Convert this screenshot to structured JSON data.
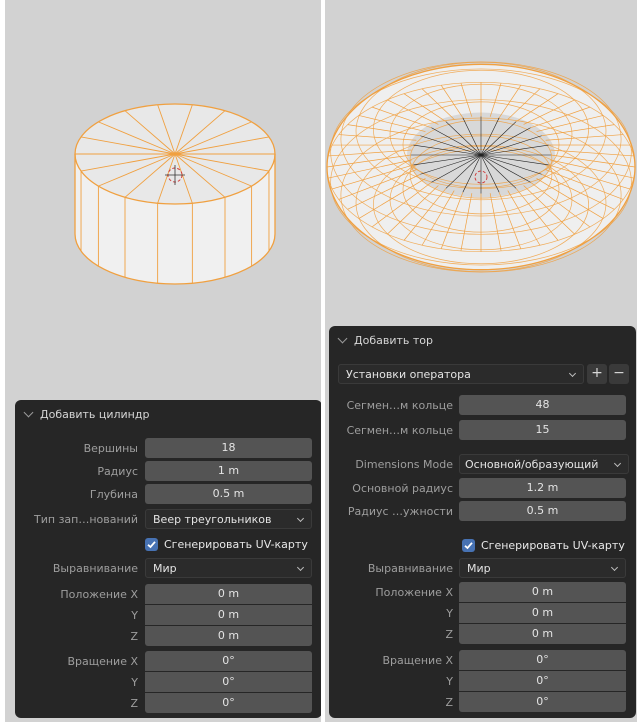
{
  "left": {
    "title": "Добавить цилиндр",
    "vertices": {
      "label": "Вершины",
      "value": "18"
    },
    "radius": {
      "label": "Радиус",
      "value": "1 m"
    },
    "depth": {
      "label": "Глубина",
      "value": "0.5 m"
    },
    "cap_fill": {
      "label": "Тип зап…нований",
      "value": "Веер треугольников"
    },
    "uv_checkbox": {
      "label": "Сгенерировать UV-карту",
      "checked": true
    },
    "align": {
      "label": "Выравнивание",
      "value": "Мир"
    },
    "location": {
      "label_x": "Положение X",
      "label_y": "Y",
      "label_z": "Z",
      "x": "0 m",
      "y": "0 m",
      "z": "0 m"
    },
    "rotation": {
      "label_x": "Вращение X",
      "label_y": "Y",
      "label_z": "Z",
      "x": "0°",
      "y": "0°",
      "z": "0°"
    }
  },
  "right": {
    "title": "Добавить тор",
    "preset": {
      "value": "Установки оператора",
      "add": "+",
      "remove": "−"
    },
    "major_segments": {
      "label": "Сегмен…м кольце",
      "value": "48"
    },
    "minor_segments": {
      "label": "Сегмен…м кольце",
      "value": "15"
    },
    "dimensions_mode": {
      "label": "Dimensions Mode",
      "value": "Основной/образующий"
    },
    "major_radius": {
      "label": "Основной радиус",
      "value": "1.2 m"
    },
    "minor_radius": {
      "label": "Радиус …ужности",
      "value": "0.5 m"
    },
    "uv_checkbox": {
      "label": "Сгенерировать UV-карту",
      "checked": true
    },
    "align": {
      "label": "Выравнивание",
      "value": "Мир"
    },
    "location": {
      "label_x": "Положение X",
      "label_y": "Y",
      "label_z": "Z",
      "x": "0 m",
      "y": "0 m",
      "z": "0 m"
    },
    "rotation": {
      "label_x": "Вращение X",
      "label_y": "Y",
      "label_z": "Z",
      "x": "0°",
      "y": "0°",
      "z": "0°"
    }
  },
  "colors": {
    "viewport": "#d2d2d2",
    "panel": "#262626",
    "field": "#545454",
    "accent": "#4772b3",
    "selection_wire": "#f0a040"
  }
}
